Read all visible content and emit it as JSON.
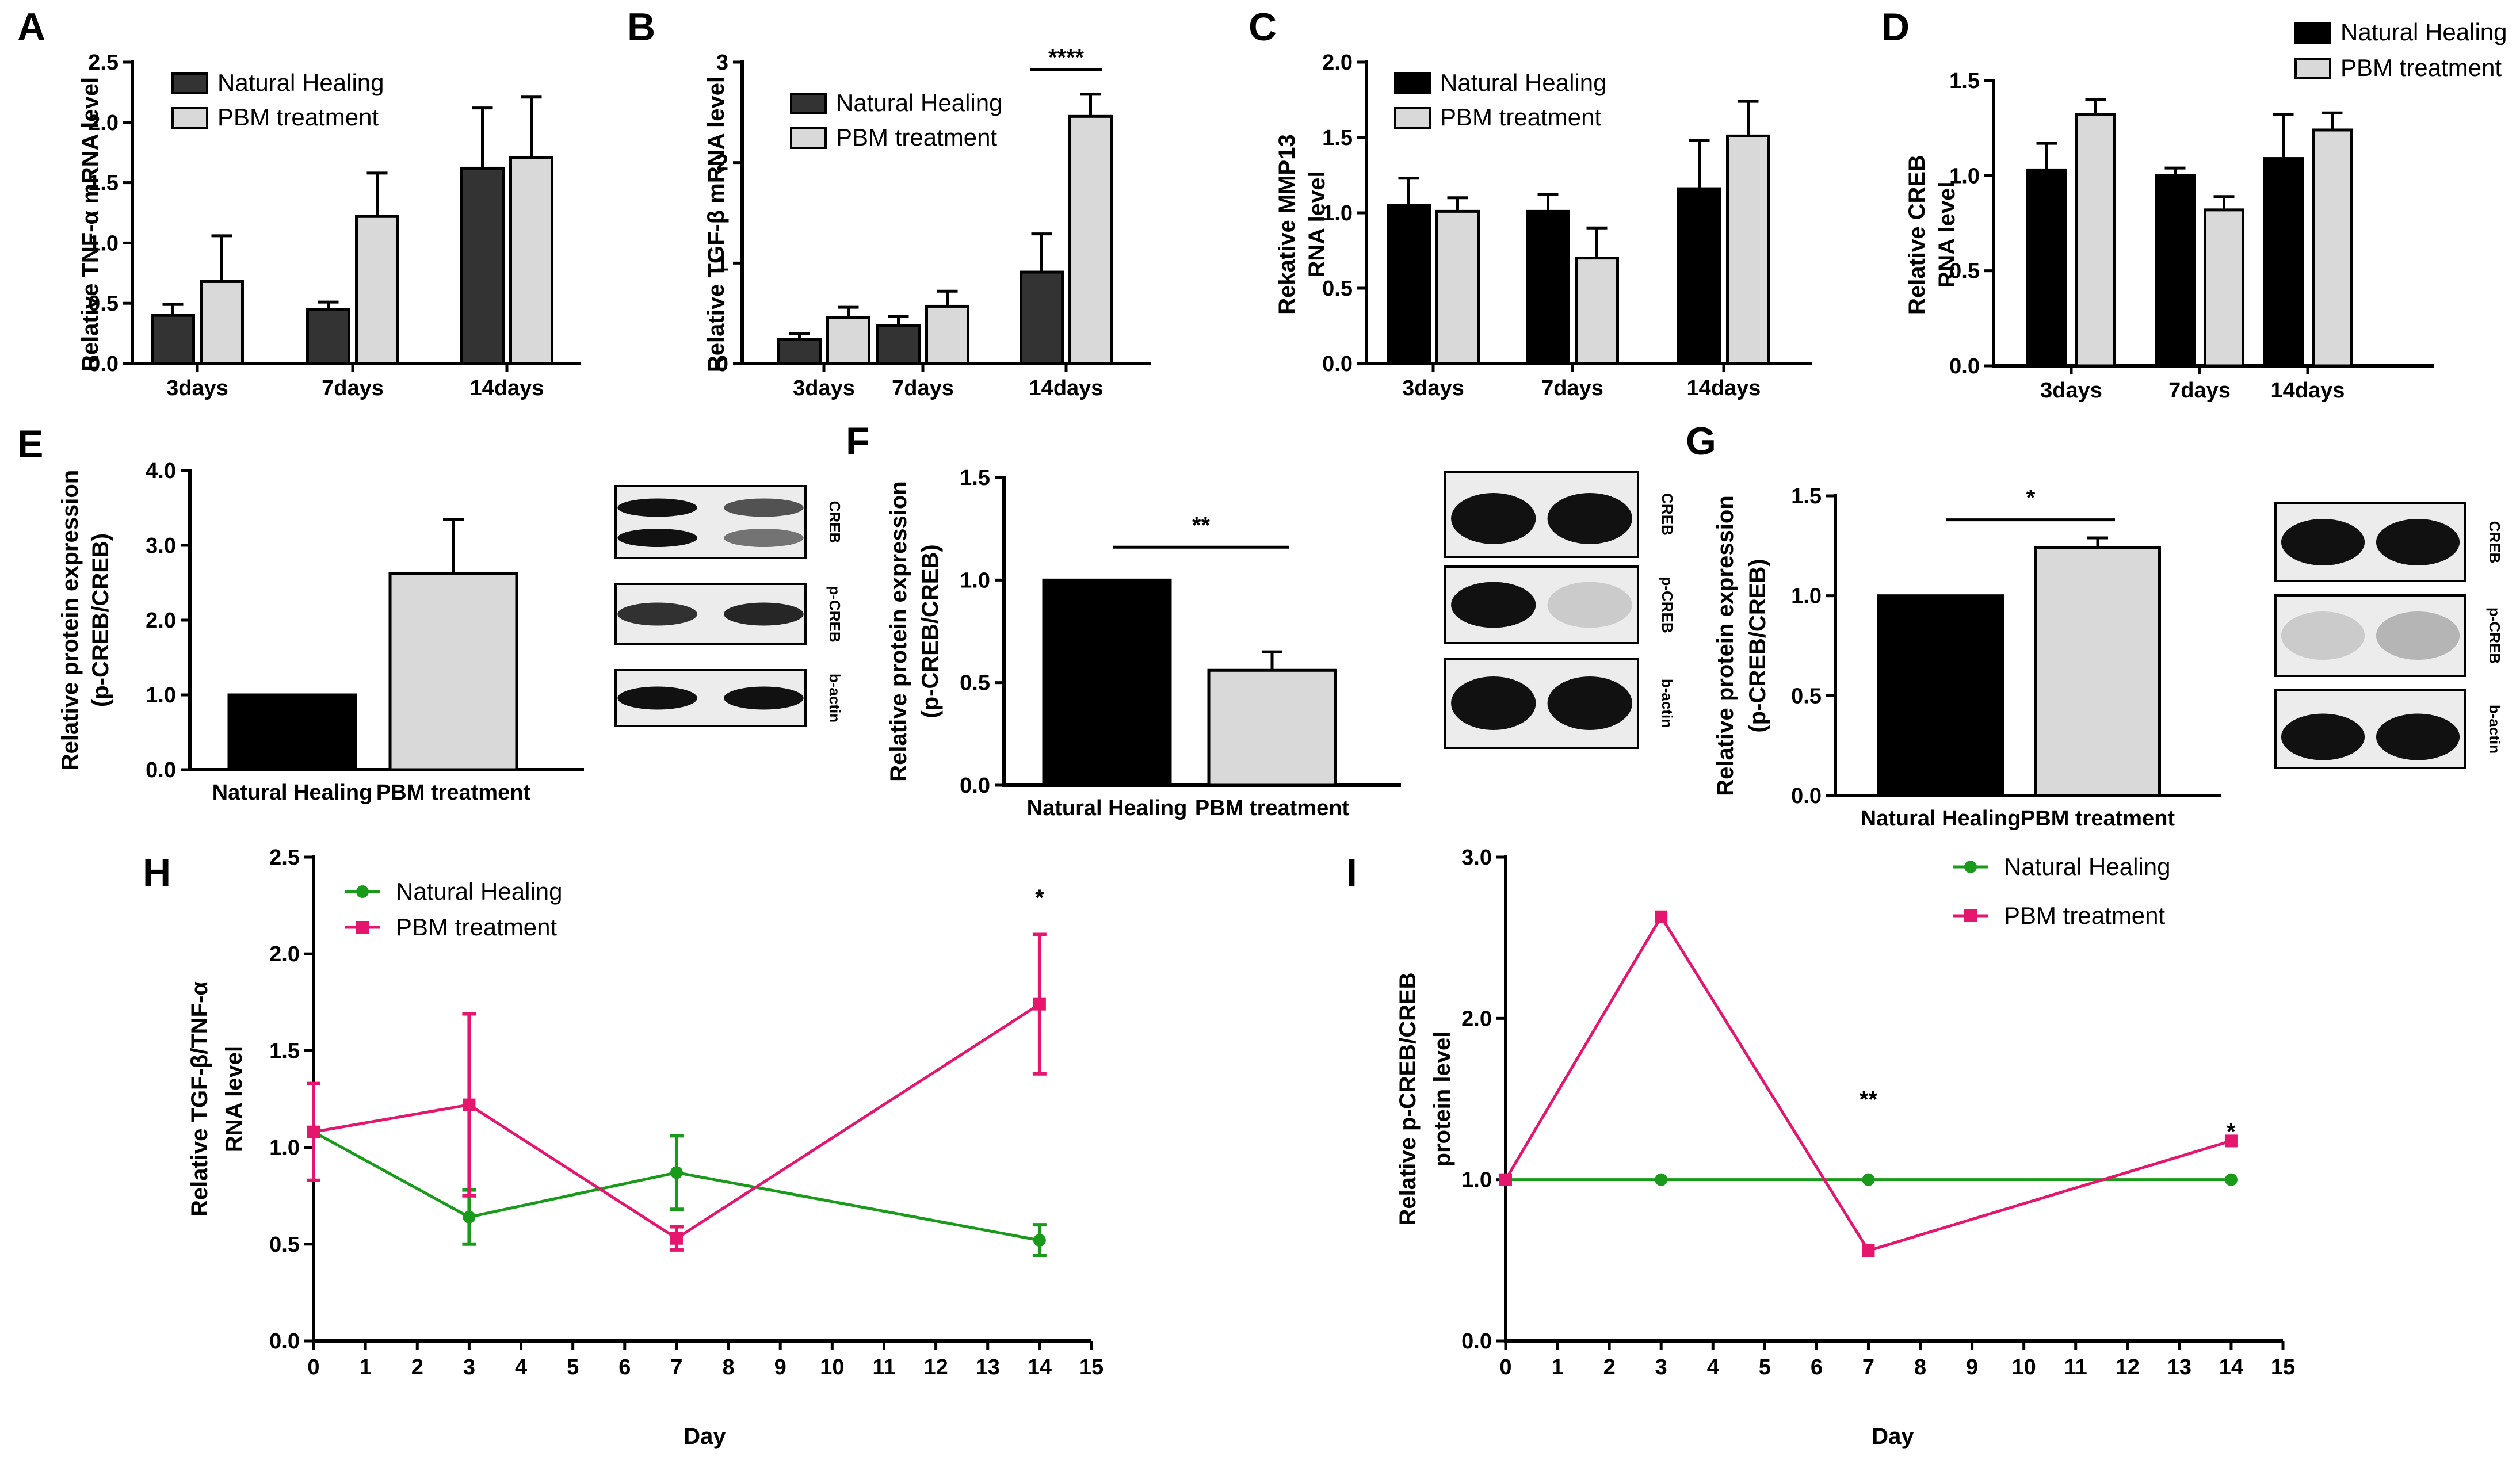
{
  "colors": {
    "dark_bar": "#333333",
    "black_bar": "#000000",
    "light_bar": "#d9d9d9",
    "green_line": "#1a9a1a",
    "pink_line": "#e5166e"
  },
  "chart_data": [
    {
      "id": "A",
      "type": "bar",
      "panel_label": "A",
      "ylabel": "Relative TNF-α mRNA level",
      "categories": [
        "3days",
        "7days",
        "14days"
      ],
      "yticks": [
        "0.0",
        "0.5",
        "1.0",
        "1.5",
        "2.0",
        "2.5"
      ],
      "ylim": [
        0,
        2.5
      ],
      "series": [
        {
          "name": "Natural Healing",
          "color": "dark",
          "values": [
            0.4,
            0.45,
            1.62
          ],
          "errors": [
            0.09,
            0.06,
            0.5
          ]
        },
        {
          "name": "PBM treatment",
          "color": "light",
          "values": [
            0.68,
            1.22,
            1.71
          ],
          "errors": [
            0.38,
            0.36,
            0.5
          ]
        }
      ],
      "significance": []
    },
    {
      "id": "B",
      "type": "bar",
      "panel_label": "B",
      "ylabel": "Relative TGF-β mRNA level",
      "categories": [
        "3days",
        "7days",
        "14days"
      ],
      "yticks": [
        "0",
        "1",
        "2",
        "3"
      ],
      "ylim": [
        0,
        3
      ],
      "series": [
        {
          "name": "Natural Healing",
          "color": "dark",
          "values": [
            0.24,
            0.38,
            0.91
          ],
          "errors": [
            0.06,
            0.09,
            0.38
          ]
        },
        {
          "name": "PBM treatment",
          "color": "light",
          "values": [
            0.46,
            0.57,
            2.46
          ],
          "errors": [
            0.1,
            0.15,
            0.22
          ]
        }
      ],
      "significance": [
        {
          "label": "****",
          "category": 2
        }
      ]
    },
    {
      "id": "C",
      "type": "bar",
      "panel_label": "C",
      "ylabel": "Rekative MMP13",
      "ylabel2": "RNA level",
      "categories": [
        "3days",
        "7days",
        "14days"
      ],
      "yticks": [
        "0.0",
        "0.5",
        "1.0",
        "1.5",
        "2.0"
      ],
      "ylim": [
        0,
        2
      ],
      "series": [
        {
          "name": "Natural Healing",
          "color": "black",
          "values": [
            1.05,
            1.01,
            1.16
          ],
          "errors": [
            0.18,
            0.11,
            0.32
          ]
        },
        {
          "name": "PBM treatment",
          "color": "light",
          "values": [
            1.01,
            0.7,
            1.51
          ],
          "errors": [
            0.09,
            0.2,
            0.23
          ]
        }
      ],
      "significance": []
    },
    {
      "id": "D",
      "type": "bar",
      "panel_label": "D",
      "ylabel": "Relative CREB",
      "ylabel2": "RNA level",
      "categories": [
        "3days",
        "7days",
        "14days"
      ],
      "yticks": [
        "0.0",
        "0.5",
        "1.0",
        "1.5"
      ],
      "ylim": [
        0,
        1.5
      ],
      "series": [
        {
          "name": "Natural Healing",
          "color": "black",
          "values": [
            1.03,
            1.0,
            1.09
          ],
          "errors": [
            0.14,
            0.04,
            0.23
          ]
        },
        {
          "name": "PBM treatment",
          "color": "light",
          "values": [
            1.32,
            0.82,
            1.24
          ],
          "errors": [
            0.08,
            0.07,
            0.09
          ]
        }
      ],
      "significance": []
    },
    {
      "id": "E",
      "type": "bar",
      "panel_label": "E",
      "ylabel": "Relative protein expression",
      "ylabel2": "(p-CREB/CREB)",
      "categories": [
        "Natural Healing",
        "PBM treatment"
      ],
      "yticks": [
        "0.0",
        "1.0",
        "2.0",
        "3.0",
        "4.0"
      ],
      "ylim": [
        0,
        4
      ],
      "values": [
        1.0,
        2.62
      ],
      "errors": [
        0,
        0.73
      ],
      "bar_colors": [
        "black",
        "light"
      ],
      "significance": [],
      "blot_labels": [
        "CREB",
        "p-CREB",
        "b-actin"
      ]
    },
    {
      "id": "F",
      "type": "bar",
      "panel_label": "F",
      "ylabel": "Relative protein expression",
      "ylabel2": "(p-CREB/CREB)",
      "categories": [
        "Natural Healing",
        "PBM treatment"
      ],
      "yticks": [
        "0.0",
        "0.5",
        "1.0",
        "1.5"
      ],
      "ylim": [
        0,
        1.5
      ],
      "values": [
        1.0,
        0.56
      ],
      "errors": [
        0,
        0.09
      ],
      "bar_colors": [
        "black",
        "light"
      ],
      "significance": [
        {
          "label": "**"
        }
      ],
      "blot_labels": [
        "CREB",
        "p-CREB",
        "b-actin"
      ]
    },
    {
      "id": "G",
      "type": "bar",
      "panel_label": "G",
      "ylabel": "Relative protein expression",
      "ylabel2": "(p-CREB/CREB)",
      "categories": [
        "Natural Healing",
        "PBM treatment"
      ],
      "yticks": [
        "0.0",
        "0.5",
        "1.0",
        "1.5"
      ],
      "ylim": [
        0,
        1.5
      ],
      "values": [
        1.0,
        1.24
      ],
      "errors": [
        0,
        0.05
      ],
      "bar_colors": [
        "black",
        "light"
      ],
      "significance": [
        {
          "label": "*"
        }
      ],
      "blot_labels": [
        "CREB",
        "p-CREB",
        "b-actin"
      ]
    },
    {
      "id": "H",
      "type": "line",
      "panel_label": "H",
      "ylabel": "Relative TGF-β/TNF-α",
      "ylabel2": "RNA level",
      "xlabel": "Day",
      "x_ticks": [
        "0",
        "1",
        "2",
        "3",
        "4",
        "5",
        "6",
        "7",
        "8",
        "9",
        "10",
        "11",
        "12",
        "13",
        "14",
        "15"
      ],
      "yticks": [
        "0.0",
        "0.5",
        "1.0",
        "1.5",
        "2.0",
        "2.5"
      ],
      "xlim": [
        0,
        15
      ],
      "ylim": [
        0,
        2.5
      ],
      "series": [
        {
          "name": "Natural Healing",
          "color": "green",
          "marker": "circle",
          "x": [
            0,
            3,
            7,
            14
          ],
          "y": [
            1.08,
            0.64,
            0.87,
            0.52
          ],
          "errors": [
            0,
            0.14,
            0.19,
            0.08
          ]
        },
        {
          "name": "PBM treatment",
          "color": "pink",
          "marker": "square",
          "x": [
            0,
            3,
            7,
            14
          ],
          "y": [
            1.08,
            1.22,
            0.53,
            1.74
          ],
          "errors": [
            0.25,
            0.47,
            0.06,
            0.36
          ]
        }
      ],
      "annotations": [
        {
          "label": "*",
          "x": 14,
          "y": 2.25
        }
      ]
    },
    {
      "id": "I",
      "type": "line",
      "panel_label": "I",
      "ylabel": "Relative p-CREB/CREB",
      "ylabel2": "protein level",
      "xlabel": "Day",
      "x_ticks": [
        "0",
        "1",
        "2",
        "3",
        "4",
        "5",
        "6",
        "7",
        "8",
        "9",
        "10",
        "11",
        "12",
        "13",
        "14",
        "15"
      ],
      "yticks": [
        "0.0",
        "1.0",
        "2.0",
        "3.0"
      ],
      "xlim": [
        0,
        15
      ],
      "ylim": [
        0,
        3
      ],
      "series": [
        {
          "name": "Natural Healing",
          "color": "green",
          "marker": "circle",
          "x": [
            0,
            3,
            7,
            14
          ],
          "y": [
            1.0,
            1.0,
            1.0,
            1.0
          ],
          "errors": [
            0,
            0,
            0,
            0
          ]
        },
        {
          "name": "PBM treatment",
          "color": "pink",
          "marker": "square",
          "x": [
            0,
            3,
            7,
            14
          ],
          "y": [
            1.0,
            2.63,
            0.56,
            1.24
          ],
          "errors": [
            0,
            0,
            0,
            0
          ]
        }
      ],
      "annotations": [
        {
          "label": "**",
          "x": 7,
          "y": 1.45
        },
        {
          "label": "*",
          "x": 14,
          "y": 1.25
        }
      ]
    }
  ]
}
